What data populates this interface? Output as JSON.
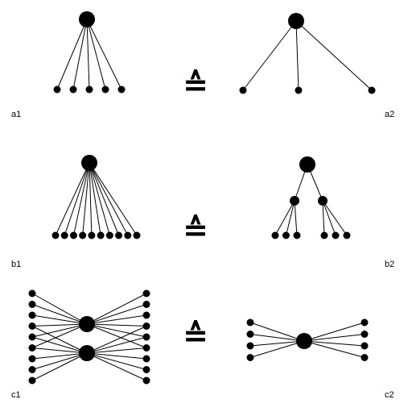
{
  "labels": {
    "a1": "a1",
    "a2": "a2",
    "b1": "b1",
    "b2": "b2",
    "c1": "c1",
    "c2": "c2"
  },
  "equivalence_symbol": "≙",
  "diagrams": {
    "a1": {
      "hubs": 1,
      "leaves": 5
    },
    "a2": {
      "hubs": 1,
      "leaves": 3
    },
    "b1": {
      "hubs": 1,
      "leaves": 10
    },
    "b2": {
      "hubs": 1,
      "sub_hubs": 2,
      "leaves_per_sub_hub": [
        3,
        3
      ],
      "leaves": 6
    },
    "c1": {
      "hubs": 2,
      "leaves_left": 9,
      "leaves_right": 9
    },
    "c2": {
      "hubs": 1,
      "leaves_left": 4,
      "leaves_right": 4
    }
  }
}
